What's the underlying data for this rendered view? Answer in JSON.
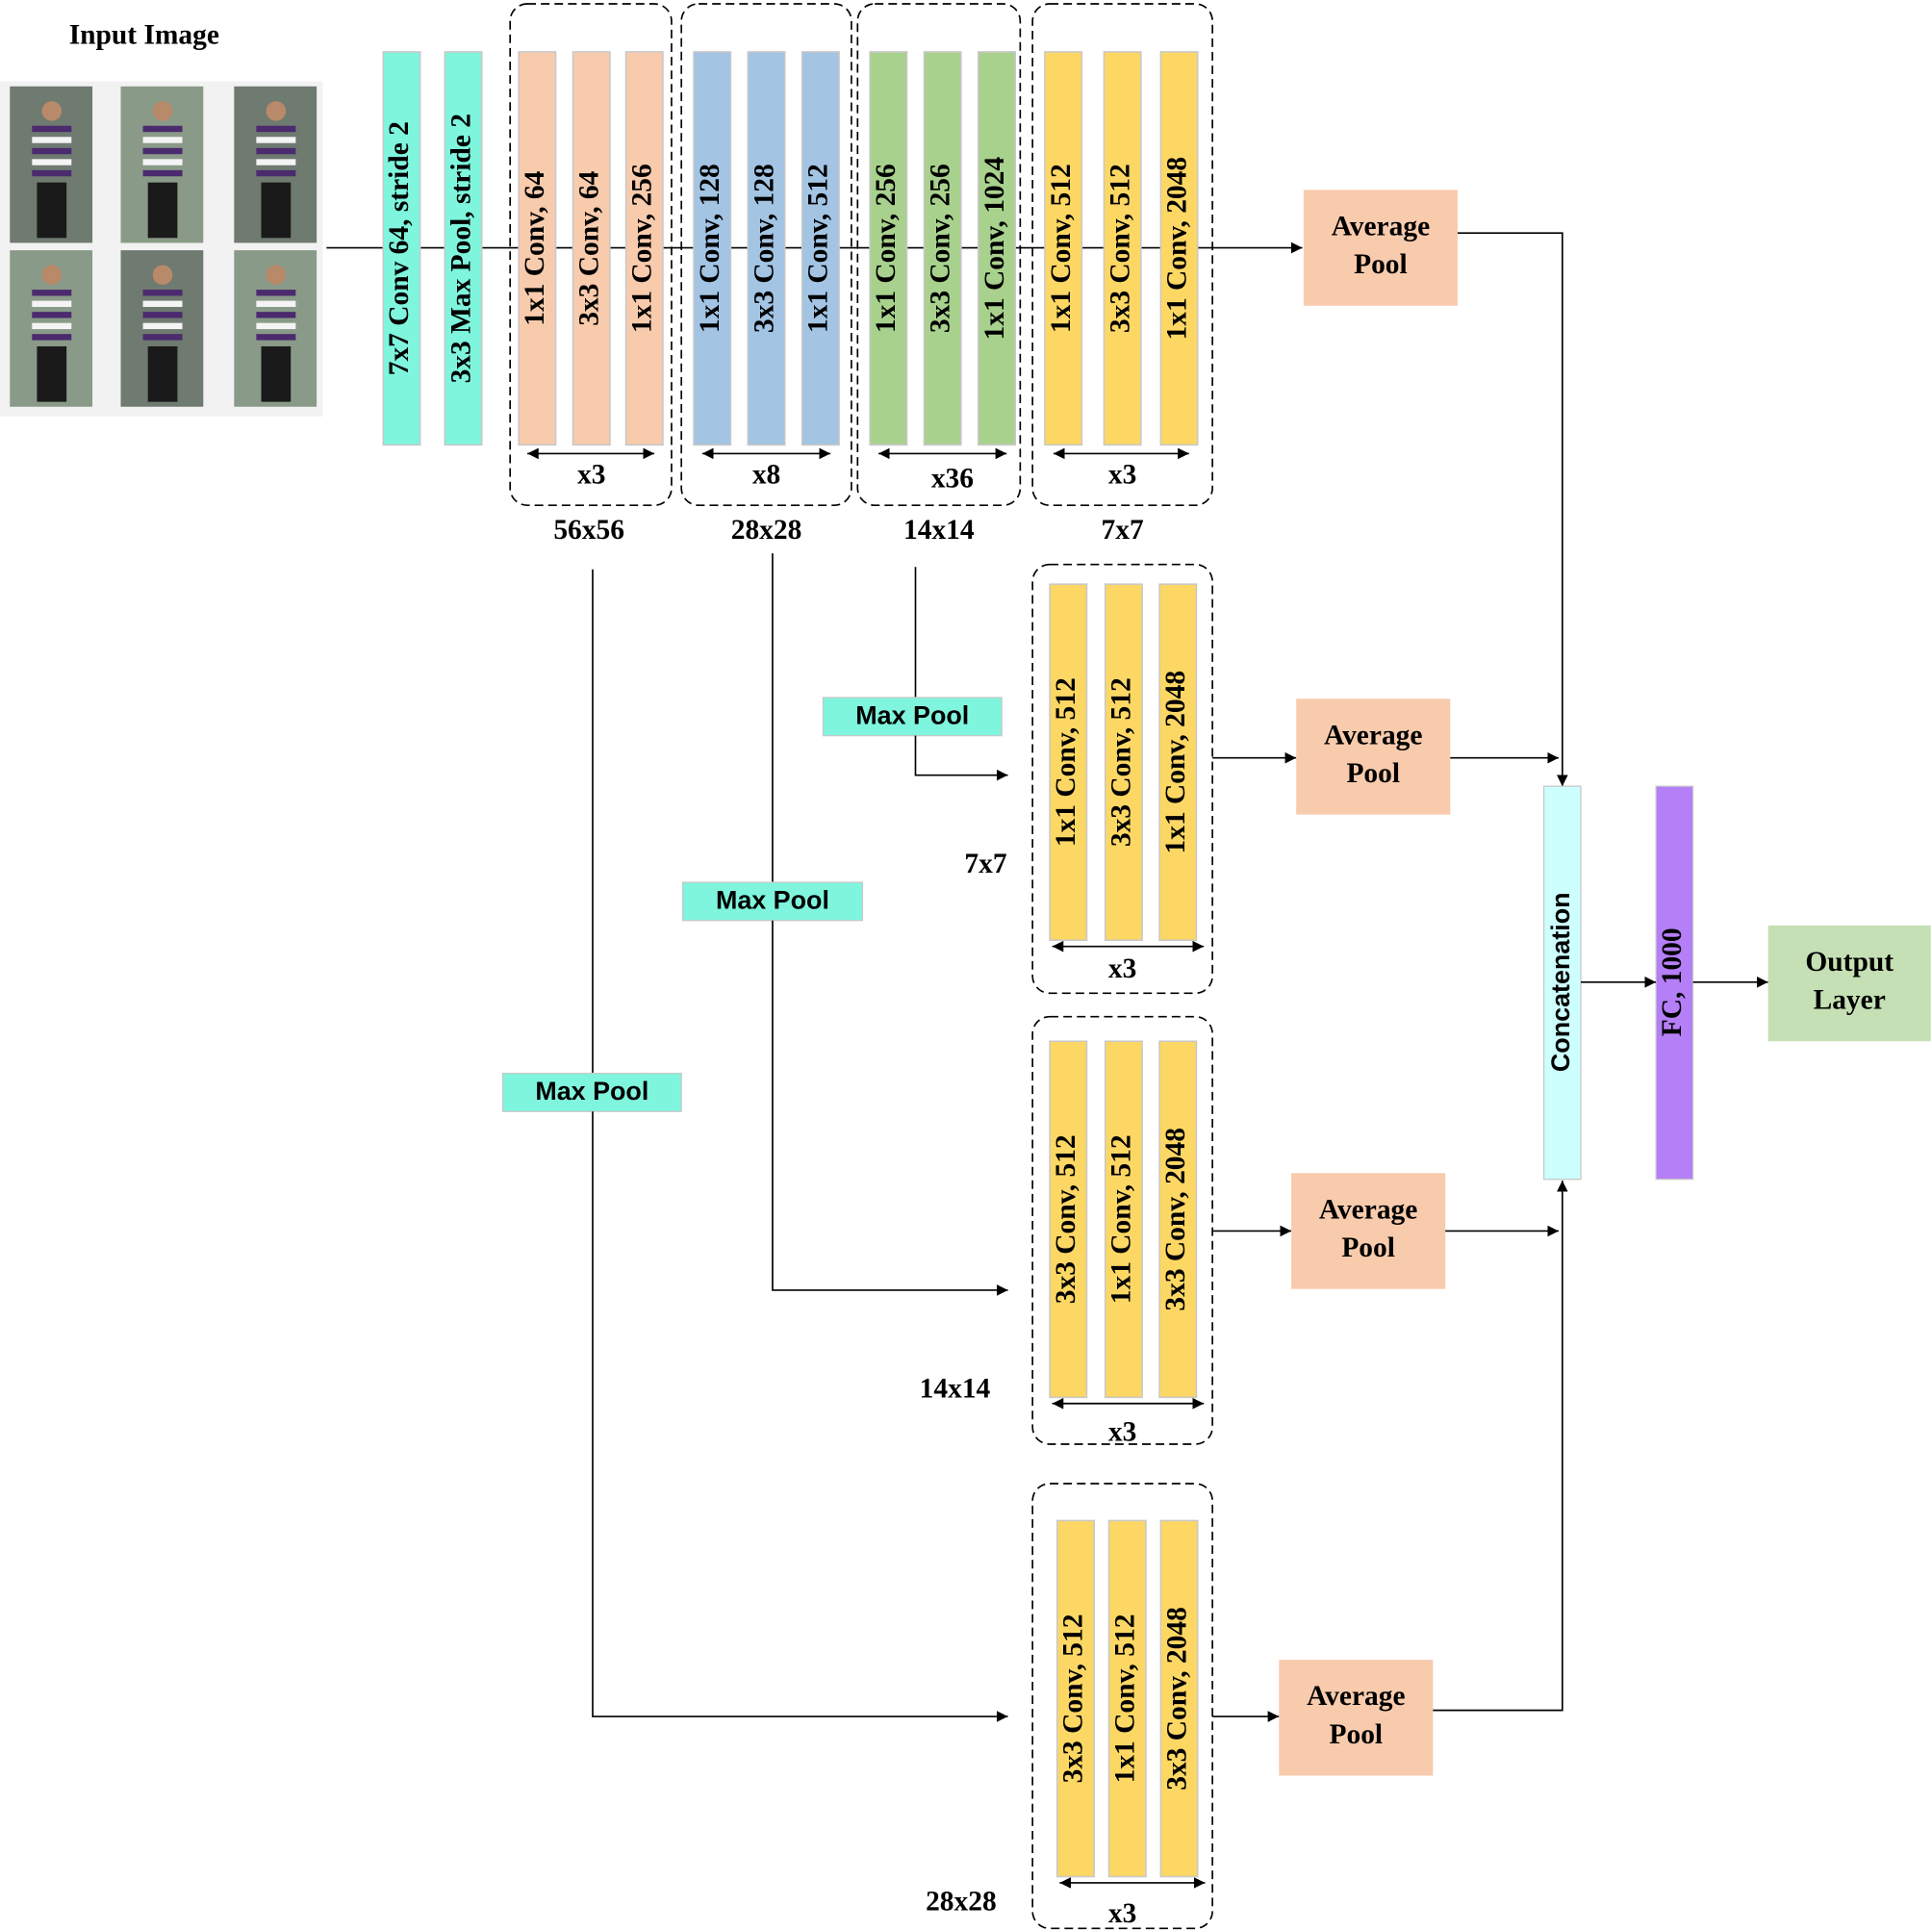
{
  "input": {
    "title": "Input Image"
  },
  "stem": [
    "7x7 Conv 64, stride 2",
    "3x3 Max Pool, stride 2"
  ],
  "stages": [
    {
      "layers": [
        "1x1 Conv, 64",
        "3x3 Conv, 64",
        "1x1 Conv, 256"
      ],
      "repeat": "x3",
      "size": "56x56"
    },
    {
      "layers": [
        "1x1 Conv, 128",
        "3x3 Conv, 128",
        "1x1 Conv, 512"
      ],
      "repeat": "x8",
      "size": "28x28"
    },
    {
      "layers": [
        "1x1 Conv, 256",
        "3x3 Conv, 256",
        "1x1 Conv, 1024"
      ],
      "repeat": "x36",
      "size": "14x14"
    },
    {
      "layers": [
        "1x1 Conv, 512",
        "3x3 Conv, 512",
        "1x1 Conv, 2048"
      ],
      "repeat": "x3",
      "size": "7x7"
    }
  ],
  "main_head": [
    "Average",
    "Pool"
  ],
  "branches": [
    {
      "pool": "Max Pool",
      "layers": [
        "1x1 Conv, 512",
        "3x3 Conv, 512",
        "1x1 Conv, 2048"
      ],
      "repeat": "x3",
      "size": "7x7",
      "head": [
        "Average",
        "Pool"
      ]
    },
    {
      "pool": "Max Pool",
      "layers": [
        "3x3 Conv, 512",
        "1x1 Conv, 512",
        "3x3 Conv, 2048"
      ],
      "repeat": "x3",
      "size": "14x14",
      "head": [
        "Average",
        "Pool"
      ]
    },
    {
      "pool": "Max Pool",
      "layers": [
        "3x3 Conv, 512",
        "1x1 Conv, 512",
        "3x3 Conv, 2048"
      ],
      "repeat": "x3",
      "size": "28x28",
      "head": [
        "Average",
        "Pool"
      ]
    }
  ],
  "concat": "Concatenation",
  "fc": "FC, 1000",
  "output": [
    "Output",
    "Layer"
  ]
}
